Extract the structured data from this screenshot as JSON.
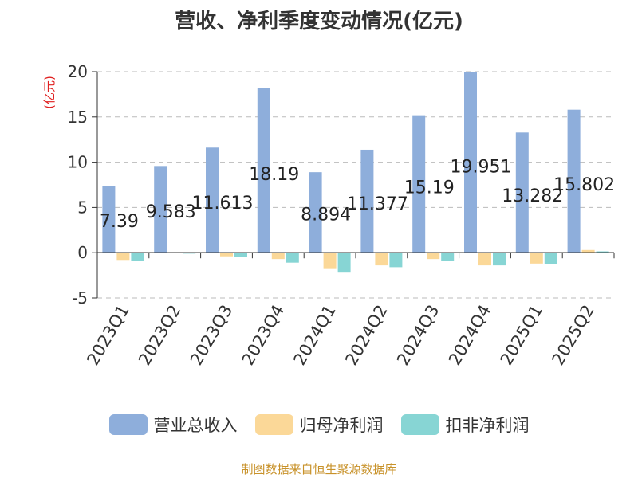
{
  "chart_data": {
    "type": "bar",
    "title": "营收、净利季度变动情况(亿元)",
    "ylabel": "(亿元)",
    "ylim": [
      -5,
      20
    ],
    "yticks": [
      -5,
      0,
      5,
      10,
      15,
      20
    ],
    "grid": true,
    "legend_position": "bottom",
    "categories": [
      "2023Q1",
      "2023Q2",
      "2023Q3",
      "2023Q4",
      "2024Q1",
      "2024Q2",
      "2024Q3",
      "2024Q4",
      "2025Q1",
      "2025Q2"
    ],
    "series": [
      {
        "name": "营业总收入",
        "color": "#8eaedb",
        "values": [
          7.39,
          9.583,
          11.613,
          18.19,
          8.894,
          11.377,
          15.19,
          19.951,
          13.282,
          15.802
        ],
        "labels": [
          "7.39",
          "9.583",
          "11.613",
          "18.19",
          "8.894",
          "11.377",
          "15.19",
          "19.951",
          "13.282",
          "15.802"
        ]
      },
      {
        "name": "归母净利润",
        "color": "#fbd898",
        "values": [
          -0.8,
          0.05,
          -0.4,
          -0.7,
          -1.8,
          -1.4,
          -0.7,
          -1.4,
          -1.2,
          0.3
        ]
      },
      {
        "name": "扣非净利润",
        "color": "#87d5d4",
        "values": [
          -0.9,
          -0.1,
          -0.5,
          -1.1,
          -2.2,
          -1.6,
          -0.9,
          -1.4,
          -1.3,
          0.15
        ]
      }
    ]
  },
  "source_text": "制图数据来自恒生聚源数据库"
}
